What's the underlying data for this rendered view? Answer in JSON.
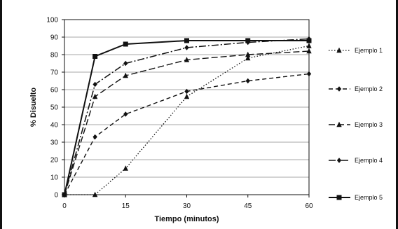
{
  "chart_data": {
    "type": "line",
    "xlabel": "Tiempo (minutos)",
    "ylabel": "% Disuelto",
    "xlim": [
      0,
      60
    ],
    "ylim": [
      0,
      100
    ],
    "xticks": [
      0,
      15,
      30,
      45,
      60
    ],
    "yticks": [
      0,
      10,
      20,
      30,
      40,
      50,
      60,
      70,
      80,
      90,
      100
    ],
    "grid": "horizontal",
    "legend_position": "right",
    "series": [
      {
        "name": "Ejemplo 1",
        "marker": "triangle",
        "dash": "dotted",
        "color": "#111111",
        "x": [
          0,
          7.5,
          15,
          30,
          45,
          60
        ],
        "y": [
          0,
          0,
          15,
          56,
          78,
          85
        ]
      },
      {
        "name": "Ejemplo 2",
        "marker": "diamond",
        "dash": "dashed",
        "color": "#111111",
        "x": [
          0,
          7.5,
          15,
          30,
          45,
          60
        ],
        "y": [
          0,
          33,
          46,
          59,
          65,
          69
        ]
      },
      {
        "name": "Ejemplo 3",
        "marker": "triangle",
        "dash": "longdash",
        "color": "#111111",
        "x": [
          0,
          7.5,
          15,
          30,
          45,
          60
        ],
        "y": [
          0,
          56,
          68,
          77,
          80,
          82
        ]
      },
      {
        "name": "Ejemplo 4",
        "marker": "diamond",
        "dash": "dashdot",
        "color": "#111111",
        "x": [
          0,
          7.5,
          15,
          30,
          45,
          60
        ],
        "y": [
          0,
          63,
          75,
          84,
          87,
          89
        ]
      },
      {
        "name": "Ejemplo 5",
        "marker": "square",
        "dash": "solid",
        "color": "#111111",
        "x": [
          0,
          7.5,
          15,
          30,
          45,
          60
        ],
        "y": [
          0,
          79,
          86,
          88,
          88,
          88
        ]
      }
    ]
  }
}
